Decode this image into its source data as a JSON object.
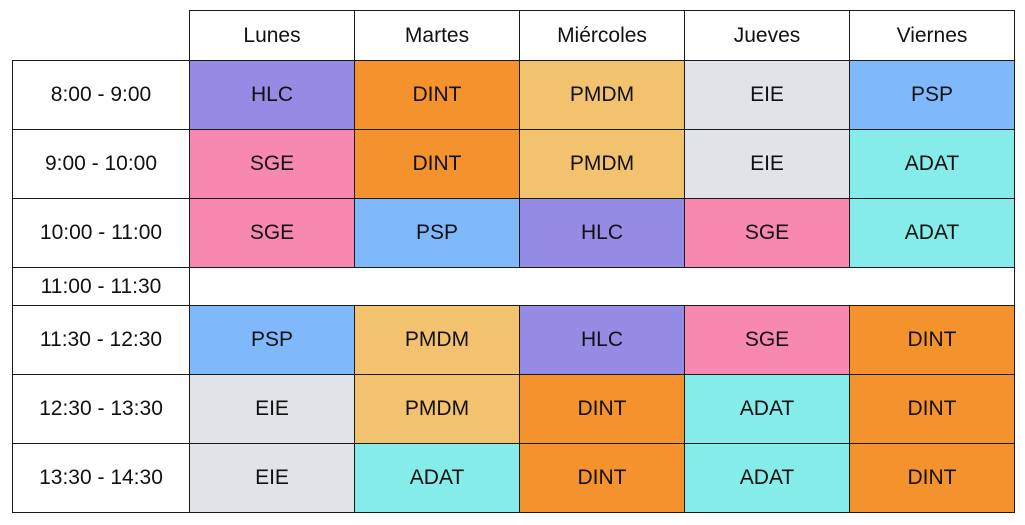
{
  "schedule": {
    "days": [
      "Lunes",
      "Martes",
      "Miércoles",
      "Jueves",
      "Viernes"
    ],
    "rows": [
      {
        "time": "8:00 - 9:00",
        "cells": [
          "HLC",
          "DINT",
          "PMDM",
          "EIE",
          "PSP"
        ]
      },
      {
        "time": "9:00 - 10:00",
        "cells": [
          "SGE",
          "DINT",
          "PMDM",
          "EIE",
          "ADAT"
        ]
      },
      {
        "time": "10:00 - 11:00",
        "cells": [
          "SGE",
          "PSP",
          "HLC",
          "SGE",
          "ADAT"
        ]
      },
      {
        "time": "11:00 - 11:30",
        "break": true
      },
      {
        "time": "11:30 - 12:30",
        "cells": [
          "PSP",
          "PMDM",
          "HLC",
          "SGE",
          "DINT"
        ]
      },
      {
        "time": "12:30 - 13:30",
        "cells": [
          "EIE",
          "PMDM",
          "DINT",
          "ADAT",
          "DINT"
        ]
      },
      {
        "time": "13:30 - 14:30",
        "cells": [
          "EIE",
          "ADAT",
          "DINT",
          "ADAT",
          "DINT"
        ]
      }
    ],
    "subject_colors": {
      "HLC": "#938be4",
      "DINT": "#f4922e",
      "PMDM": "#f2c26f",
      "EIE": "#e0e3e8",
      "PSP": "#7fb8fb",
      "SGE": "#f788b0",
      "ADAT": "#86ecea"
    }
  }
}
